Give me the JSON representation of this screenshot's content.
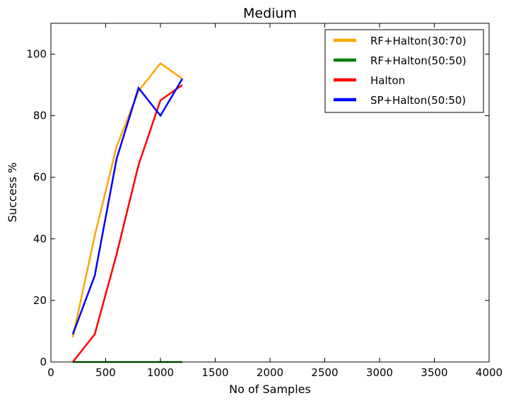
{
  "chart_data": {
    "type": "line",
    "title": "Medium",
    "xlabel": "No of Samples",
    "ylabel": "Success %",
    "xlim": [
      0,
      4000
    ],
    "ylim": [
      0,
      110
    ],
    "xticks": [
      0,
      500,
      1000,
      1500,
      2000,
      2500,
      3000,
      3500,
      4000
    ],
    "yticks": [
      0,
      20,
      40,
      60,
      80,
      100
    ],
    "grid": false,
    "legend_position": "top-right",
    "series": [
      {
        "name": "RF+Halton(30:70)",
        "color": "#ffa500",
        "x": [
          200,
          400,
          600,
          800,
          1000,
          1200
        ],
        "y": [
          8,
          41,
          70,
          88,
          97,
          92
        ]
      },
      {
        "name": "RF+Halton(50:50)",
        "color": "#008000",
        "x": [
          200,
          400,
          600,
          800,
          1000,
          1200
        ],
        "y": [
          0,
          0,
          0,
          0,
          0,
          0
        ]
      },
      {
        "name": "Halton",
        "color": "#ff0000",
        "x": [
          200,
          400,
          600,
          800,
          1000,
          1200
        ],
        "y": [
          0,
          9,
          35,
          64,
          85,
          90
        ]
      },
      {
        "name": "SP+Halton(50:50)",
        "color": "#0000ff",
        "x": [
          200,
          400,
          600,
          800,
          1000,
          1200
        ],
        "y": [
          9,
          28,
          66,
          89,
          80,
          92
        ]
      }
    ]
  }
}
